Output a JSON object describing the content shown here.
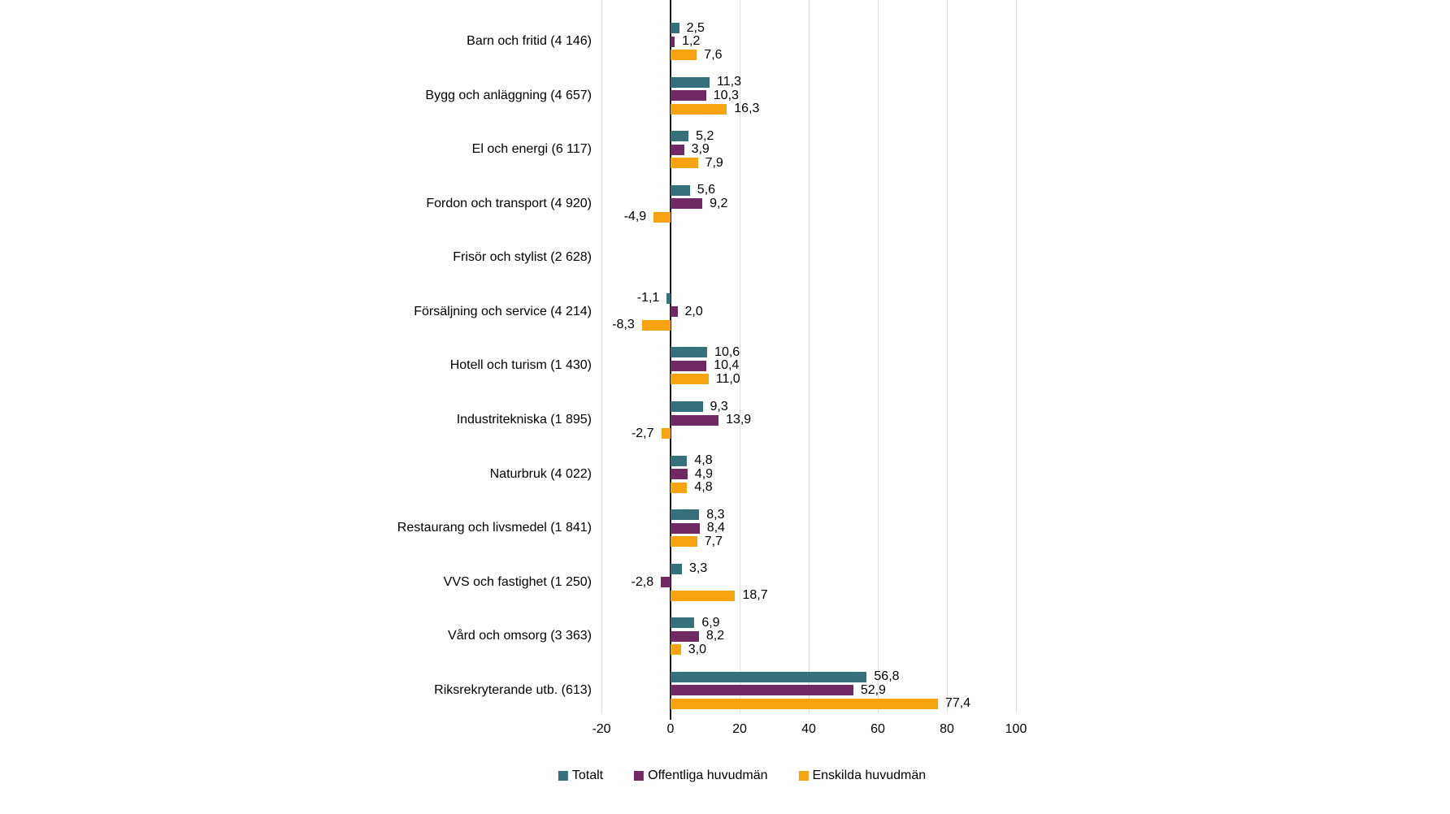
{
  "chart_data": {
    "type": "bar",
    "orientation": "horizontal",
    "categories": [
      "Barn och fritid (4 146)",
      "Bygg och anläggning (4 657)",
      "El och energi (6 117)",
      "Fordon och transport (4 920)",
      "Frisör och stylist (2 628)",
      "Försäljning och service (4 214)",
      "Hotell och turism (1 430)",
      "Industritekniska (1 895)",
      "Naturbruk (4 022)",
      "Restaurang och livsmedel (1 841)",
      "VVS och fastighet (1 250)",
      "Vård och omsorg (3 363)",
      "Riksrekryterande utb. (613)"
    ],
    "series": [
      {
        "name": "Totalt",
        "color": "#35707B",
        "values": [
          2.5,
          11.3,
          5.2,
          5.6,
          null,
          -1.1,
          10.6,
          9.3,
          4.8,
          8.3,
          3.3,
          6.9,
          56.8
        ],
        "labels": [
          "2,5",
          "11,3",
          "5,2",
          "5,6",
          null,
          "-1,1",
          "10,6",
          "9,3",
          "4,8",
          "8,3",
          "3,3",
          "6,9",
          "56,8"
        ]
      },
      {
        "name": "Offentliga huvudmän",
        "color": "#702963",
        "values": [
          1.2,
          10.3,
          3.9,
          9.2,
          null,
          2.0,
          10.4,
          13.9,
          4.9,
          8.4,
          -2.8,
          8.2,
          52.9
        ],
        "labels": [
          "1,2",
          "10,3",
          "3,9",
          "9,2",
          null,
          "2,0",
          "10,4",
          "13,9",
          "4,9",
          "8,4",
          "-2,8",
          "8,2",
          "52,9"
        ]
      },
      {
        "name": "Enskilda huvudmän",
        "color": "#F6A30F",
        "values": [
          7.6,
          16.3,
          7.9,
          -4.9,
          null,
          -8.3,
          11.0,
          -2.7,
          4.8,
          7.7,
          18.7,
          3.0,
          77.4
        ],
        "labels": [
          "7,6",
          "16,3",
          "7,9",
          "-4,9",
          null,
          "-8,3",
          "11,0",
          "-2,7",
          "4,8",
          "7,7",
          "18,7",
          "3,0",
          "77,4"
        ]
      }
    ],
    "xticks": {
      "values": [
        -20,
        0,
        20,
        40,
        60,
        80,
        100
      ],
      "labels": [
        "-20",
        "0",
        "20",
        "40",
        "60",
        "80",
        "100"
      ]
    },
    "xlim": [
      -20,
      100
    ],
    "grid": "vertical-light",
    "zero_line": true,
    "legend_position": "bottom-center",
    "title": "",
    "xlabel": "",
    "ylabel": ""
  },
  "colors": {
    "background": "#FFFFFF",
    "grid": "#DDDDDD",
    "axis": "#1A1A1A",
    "text": "#000000"
  }
}
